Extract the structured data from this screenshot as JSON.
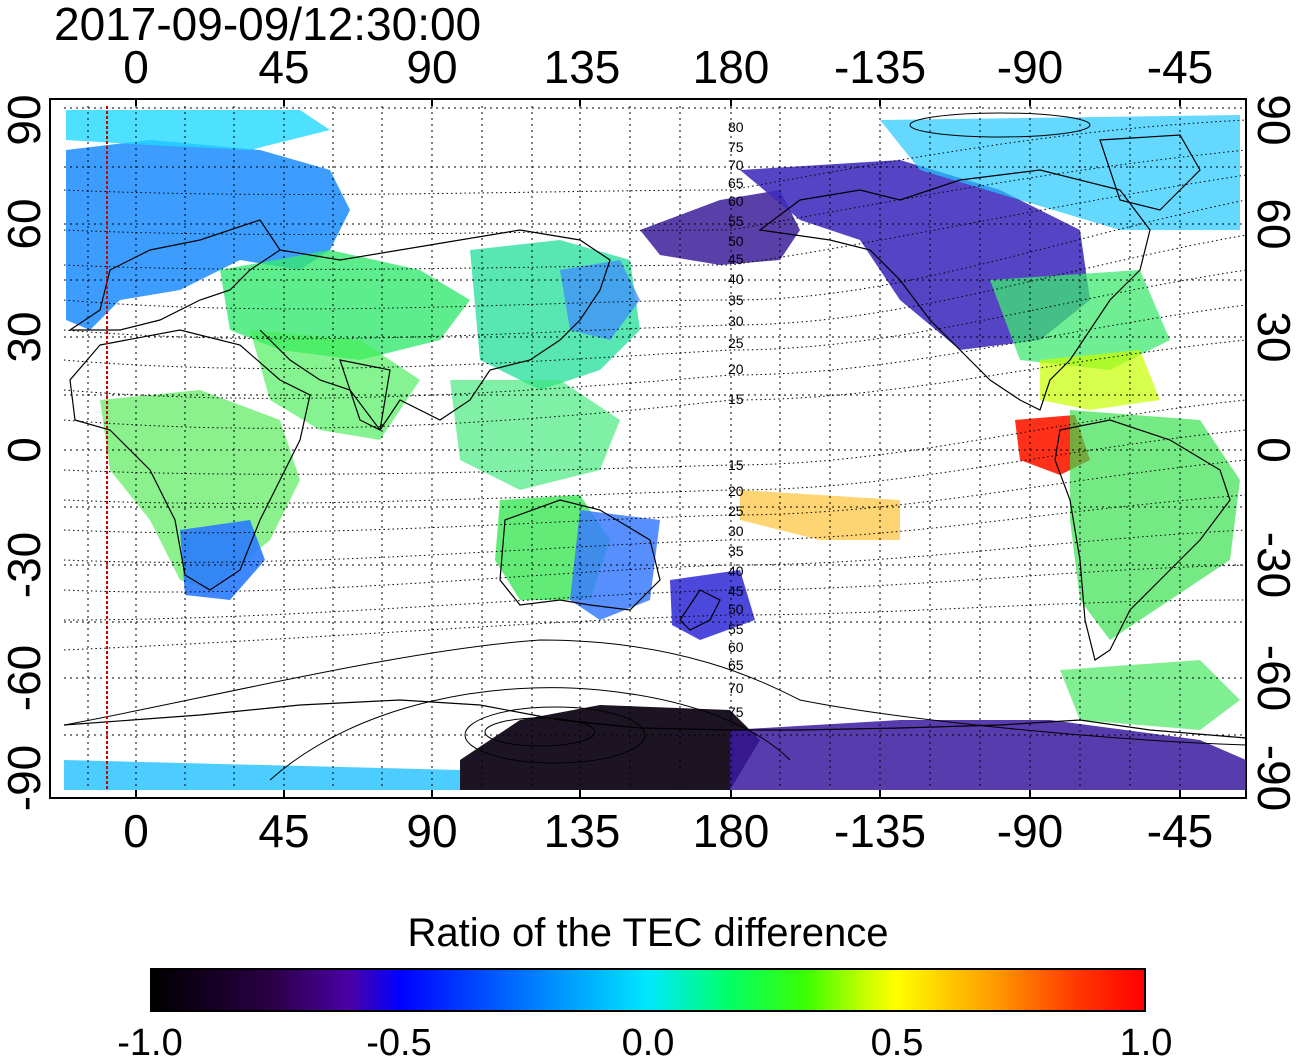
{
  "timestamp": "2017-09-09/12:30:00",
  "axes": {
    "top_ticks": [
      "0",
      "45",
      "90",
      "135",
      "180",
      "-135",
      "-90",
      "-45"
    ],
    "bottom_ticks": [
      "0",
      "45",
      "90",
      "135",
      "180",
      "-135",
      "-90",
      "-45"
    ],
    "left_ticks": [
      "90",
      "60",
      "30",
      "0",
      "-30",
      "-60",
      "-90"
    ],
    "right_ticks": [
      "90",
      "60",
      "30",
      "0",
      "-30",
      "-60",
      "-90"
    ]
  },
  "magnetic_latitude_labels_north": [
    "80",
    "75",
    "70",
    "65",
    "60",
    "55",
    "50",
    "45",
    "40",
    "35",
    "30",
    "25",
    "20",
    "15"
  ],
  "magnetic_latitude_labels_south": [
    "15",
    "20",
    "25",
    "30",
    "35",
    "40",
    "45",
    "50",
    "55",
    "60",
    "65",
    "70",
    "75"
  ],
  "colorbar": {
    "title": "Ratio of the TEC difference",
    "ticks": [
      "-1.0",
      "-0.5",
      "0.0",
      "0.5",
      "1.0"
    ],
    "min": -1.0,
    "max": 1.0
  },
  "colors": {
    "low": "#000000",
    "mid": "#00e8ff",
    "high": "#ff0000",
    "terminator_line": "#cc0000"
  },
  "map": {
    "projection": "equirectangular",
    "lon_range": [
      -20,
      340
    ],
    "lat_range": [
      -90,
      90
    ],
    "terminator_longitude": -8,
    "grid": "dotted"
  }
}
